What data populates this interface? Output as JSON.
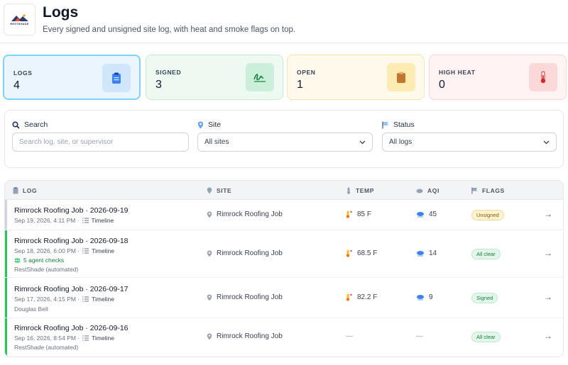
{
  "brand": {
    "logo_text": "RESTSHADE"
  },
  "header": {
    "title": "Logs",
    "subtitle": "Every signed and unsigned site log, with heat and smoke flags on top."
  },
  "stats": [
    {
      "label": "LOGS",
      "value": "4",
      "icon": "clipboard-icon",
      "color": "#3b82f6"
    },
    {
      "label": "SIGNED",
      "value": "3",
      "icon": "signature-icon",
      "color": "#16a34a"
    },
    {
      "label": "OPEN",
      "value": "1",
      "icon": "clipboard-open-icon",
      "color": "#d97706"
    },
    {
      "label": "HIGH HEAT",
      "value": "0",
      "icon": "thermometer-icon",
      "color": "#dc2626"
    }
  ],
  "filters": {
    "search": {
      "label": "Search",
      "placeholder": "Search log, site, or supervisor",
      "icon": "search-icon"
    },
    "site": {
      "label": "Site",
      "value": "All sites",
      "icon": "map-pin-icon"
    },
    "status": {
      "label": "Status",
      "value": "All logs",
      "icon": "flag-icon"
    }
  },
  "table": {
    "columns": [
      "LOG",
      "SITE",
      "TEMP",
      "AQI",
      "FLAGS"
    ],
    "rows": [
      {
        "title": "Rimrock Roofing Job · 2026-09-19",
        "time": "Sep 19, 2026, 4:11 PM ·",
        "timeline": "Timeline",
        "checks": "",
        "by": "",
        "site": "Rimrock Roofing Job",
        "temp": "85 F",
        "aqi": "45",
        "flag": "Unsigned",
        "accent": "#d1d5db"
      },
      {
        "title": "Rimrock Roofing Job · 2026-09-18",
        "time": "Sep 18, 2026, 6:00 PM ·",
        "timeline": "Timeline",
        "checks": "5 agent checks",
        "by": "RestShade (automated)",
        "site": "Rimrock Roofing Job",
        "temp": "68.5 F",
        "aqi": "14",
        "flag": "All clear",
        "accent": "#22c55e"
      },
      {
        "title": "Rimrock Roofing Job · 2026-09-17",
        "time": "Sep 17, 2026, 4:15 PM ·",
        "timeline": "Timeline",
        "checks": "",
        "by": "Douglas Bell",
        "site": "Rimrock Roofing Job",
        "temp": "82.2 F",
        "aqi": "9",
        "flag": "Signed",
        "accent": "#22c55e"
      },
      {
        "title": "Rimrock Roofing Job · 2026-09-16",
        "time": "Sep 16, 2026, 8:54 PM ·",
        "timeline": "Timeline",
        "checks": "",
        "by": "RestShade (automated)",
        "site": "Rimrock Roofing Job",
        "temp": "—",
        "aqi": "—",
        "flag": "All clear",
        "accent": "#22c55e"
      }
    ]
  }
}
